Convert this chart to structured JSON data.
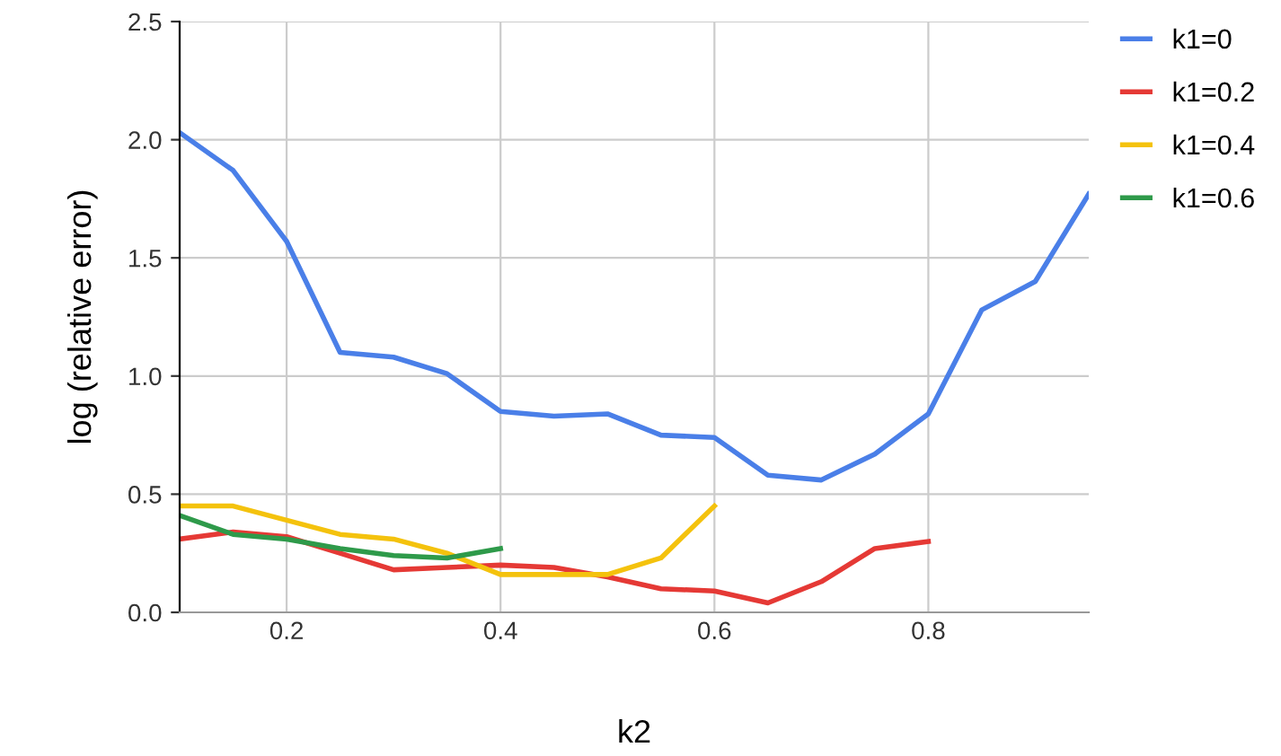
{
  "chart_data": {
    "type": "line",
    "xlabel": "k2",
    "ylabel": "log (relative error)",
    "xlim": [
      0.1,
      0.95
    ],
    "xticks": [
      0.2,
      0.4,
      0.6,
      0.8
    ],
    "ylim": [
      0,
      2.5
    ],
    "yticks": [
      {
        "value": 0,
        "label": "0.0"
      },
      0.5,
      {
        "value": 1,
        "label": "1.0"
      },
      1.5,
      {
        "value": 2,
        "label": "2.0"
      },
      2.5
    ],
    "grid": true,
    "legend": "top right",
    "line_style": "solid",
    "series": [
      {
        "name": "k1=0",
        "color": "#4a7fe8",
        "x": [
          0.1,
          0.15,
          0.2,
          0.25,
          0.3,
          0.35,
          0.4,
          0.45,
          0.5,
          0.55,
          0.6,
          0.65,
          0.7,
          0.75,
          0.8,
          0.85,
          0.9,
          0.95
        ],
        "values": [
          2.03,
          1.87,
          1.57,
          1.1,
          1.08,
          1.01,
          0.85,
          0.83,
          0.84,
          0.75,
          0.74,
          0.58,
          0.56,
          0.67,
          0.84,
          1.28,
          1.4,
          1.77
        ]
      },
      {
        "name": "k1=0.2",
        "color": "#e53935",
        "x": [
          0.1,
          0.15,
          0.2,
          0.25,
          0.3,
          0.35,
          0.4,
          0.45,
          0.5,
          0.55,
          0.6,
          0.65,
          0.7,
          0.75,
          0.8
        ],
        "values": [
          0.31,
          0.34,
          0.32,
          0.25,
          0.18,
          0.19,
          0.2,
          0.19,
          0.15,
          0.1,
          0.09,
          0.04,
          0.13,
          0.27,
          0.3
        ]
      },
      {
        "name": "k1=0.4",
        "color": "#f4c20d",
        "x": [
          0.1,
          0.15,
          0.2,
          0.25,
          0.3,
          0.35,
          0.4,
          0.45,
          0.5,
          0.55,
          0.6
        ],
        "values": [
          0.45,
          0.45,
          0.39,
          0.33,
          0.31,
          0.25,
          0.16,
          0.16,
          0.16,
          0.23,
          0.45
        ]
      },
      {
        "name": "k1=0.6",
        "color": "#2e9a4a",
        "x": [
          0.1,
          0.15,
          0.2,
          0.25,
          0.3,
          0.35,
          0.4
        ],
        "values": [
          0.41,
          0.33,
          0.31,
          0.27,
          0.24,
          0.23,
          0.27
        ]
      }
    ]
  }
}
